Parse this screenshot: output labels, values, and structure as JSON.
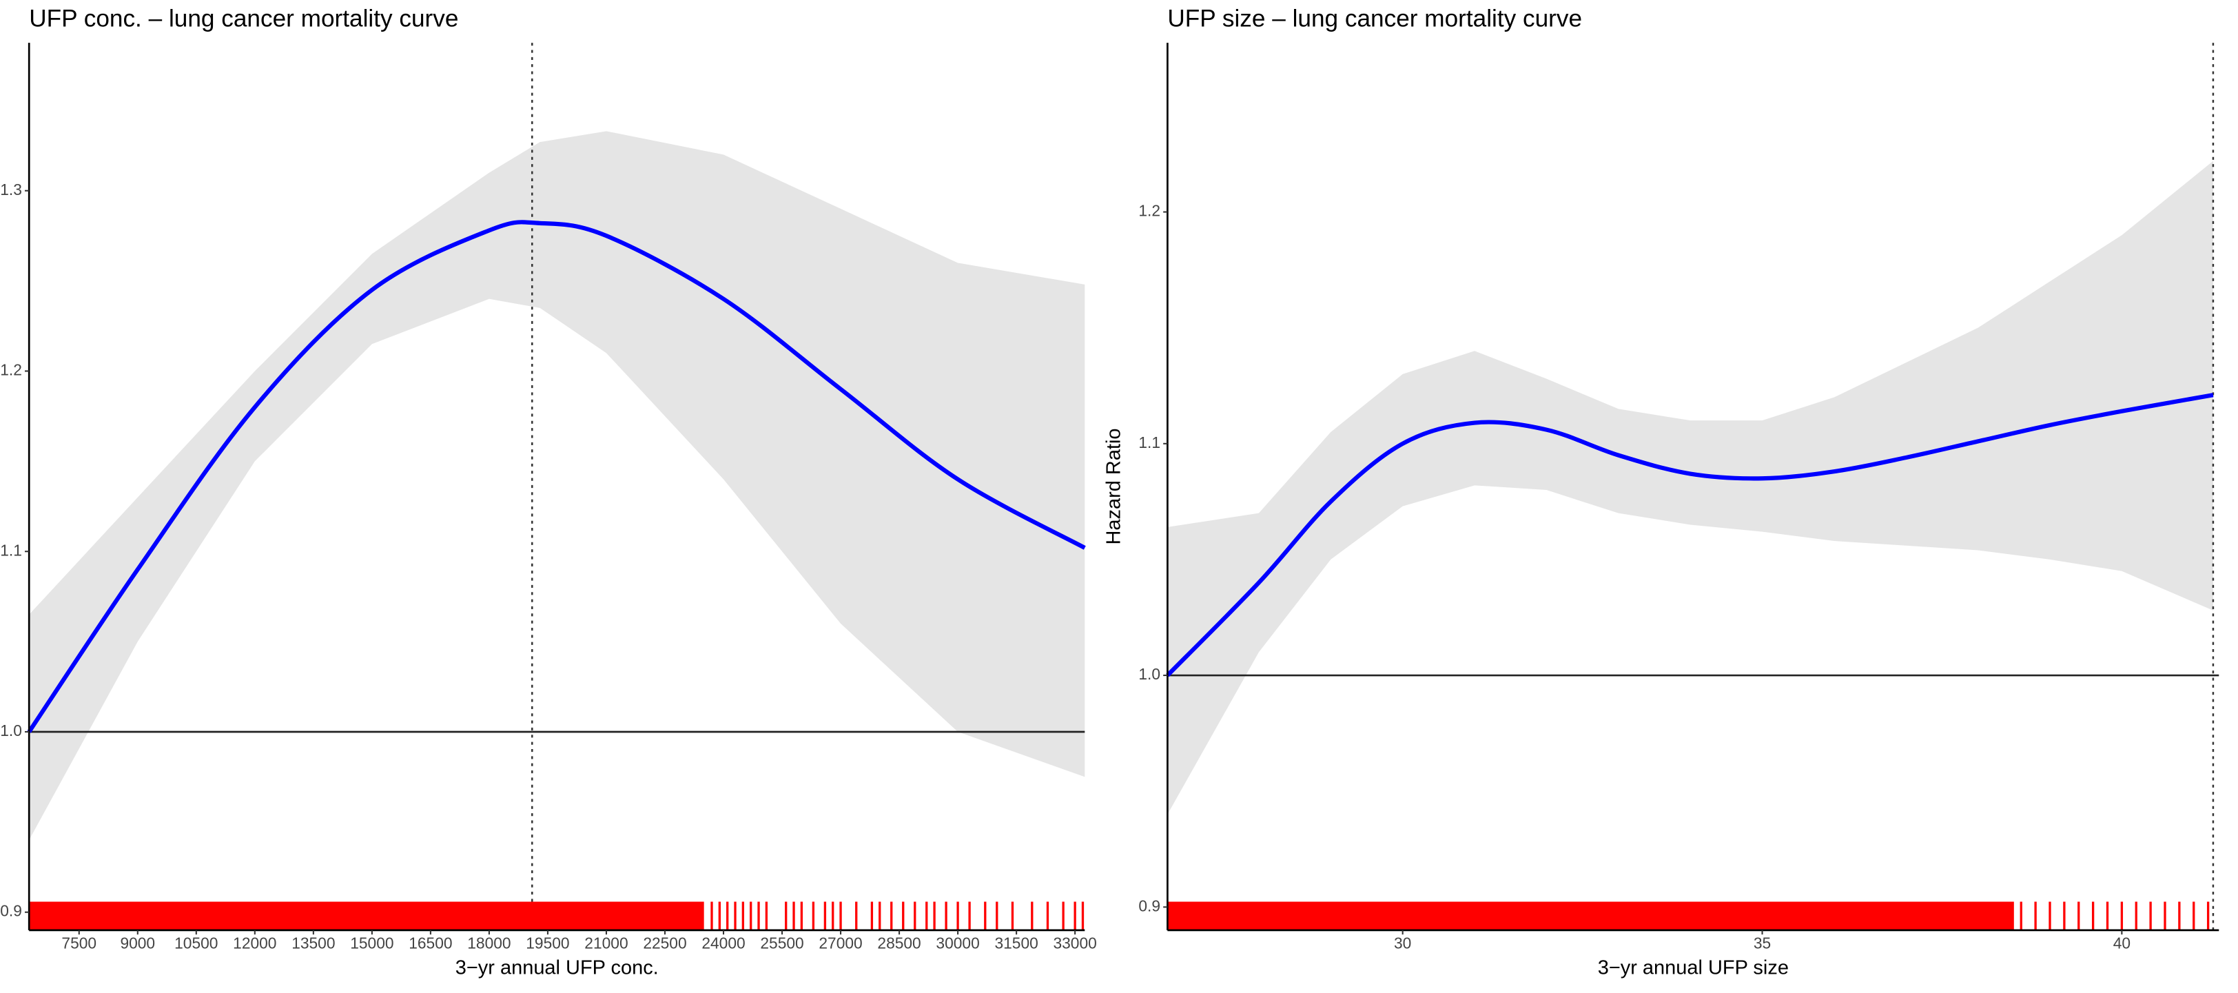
{
  "chart_data": [
    {
      "type": "line",
      "title": "UFP conc. – lung cancer mortality curve",
      "x_label": "3−yr annual UFP conc.",
      "x": [
        6220,
        9000,
        12000,
        15000,
        18000,
        19300,
        21000,
        24000,
        27000,
        30000,
        33250
      ],
      "values": [
        1.0,
        1.09,
        1.18,
        1.245,
        1.278,
        1.282,
        1.275,
        1.24,
        1.19,
        1.14,
        1.102
      ],
      "lower": [
        0.94,
        1.05,
        1.15,
        1.215,
        1.24,
        1.235,
        1.21,
        1.14,
        1.06,
        1.0,
        0.975
      ],
      "upper": [
        1.065,
        1.13,
        1.2,
        1.265,
        1.31,
        1.327,
        1.333,
        1.32,
        1.29,
        1.26,
        1.248
      ],
      "color": "#0000ff",
      "band_color": "#e5e5e5",
      "ref_line": 1.0,
      "vline": 19100,
      "rug_color": "#ff0000",
      "rug_dense": [
        6220,
        23500
      ],
      "rug": [
        23700,
        23900,
        24100,
        24300,
        24500,
        24700,
        24900,
        25100,
        25600,
        25800,
        26000,
        26300,
        26600,
        26800,
        27000,
        27400,
        27800,
        28000,
        28300,
        28600,
        28900,
        29200,
        29400,
        29700,
        30000,
        30300,
        30700,
        31000,
        31400,
        31900,
        32300,
        32700,
        33000,
        33200
      ],
      "xlim": [
        6220,
        33250
      ],
      "ylim": [
        0.89,
        1.382
      ],
      "xticks": [
        7500,
        9000,
        10500,
        12000,
        13500,
        15000,
        16500,
        18000,
        19500,
        21000,
        22500,
        24000,
        25500,
        27000,
        28500,
        30000,
        31500,
        33000
      ],
      "yticks": [
        {
          "value": 0.9,
          "label": "0.9"
        },
        {
          "value": 1.0,
          "label": "1.0"
        },
        1.1,
        1.2,
        1.3
      ]
    },
    {
      "type": "line",
      "title": "UFP size – lung cancer mortality curve",
      "x_label": "3−yr annual UFP size",
      "y_label": "Hazard Ratio",
      "x": [
        26.73,
        28,
        29,
        30,
        31,
        32,
        33,
        34,
        35,
        36,
        37,
        38,
        39,
        40,
        41.27
      ],
      "values": [
        1.0,
        1.04,
        1.075,
        1.1,
        1.109,
        1.106,
        1.095,
        1.087,
        1.085,
        1.088,
        1.094,
        1.101,
        1.108,
        1.114,
        1.121
      ],
      "lower": [
        0.94,
        1.01,
        1.05,
        1.073,
        1.082,
        1.08,
        1.07,
        1.065,
        1.062,
        1.058,
        1.056,
        1.054,
        1.05,
        1.045,
        1.028
      ],
      "upper": [
        1.064,
        1.07,
        1.105,
        1.13,
        1.14,
        1.128,
        1.115,
        1.11,
        1.11,
        1.12,
        1.135,
        1.15,
        1.17,
        1.19,
        1.222
      ],
      "color": "#0000ff",
      "band_color": "#e5e5e5",
      "ref_line": 1.0,
      "vline": 41.27,
      "rug_color": "#ff0000",
      "rug_dense": [
        26.73,
        38.5
      ],
      "rug": [
        38.6,
        38.8,
        39.0,
        39.2,
        39.4,
        39.6,
        39.8,
        40.0,
        40.2,
        40.4,
        40.6,
        40.8,
        41.0,
        41.2
      ],
      "xlim": [
        26.73,
        41.35
      ],
      "ylim": [
        0.89,
        1.273
      ],
      "xticks": [
        30,
        35,
        40
      ],
      "yticks": [
        {
          "value": 0.9,
          "label": "0.9"
        },
        {
          "value": 1.0,
          "label": "1.0"
        },
        1.1,
        1.2
      ]
    }
  ]
}
